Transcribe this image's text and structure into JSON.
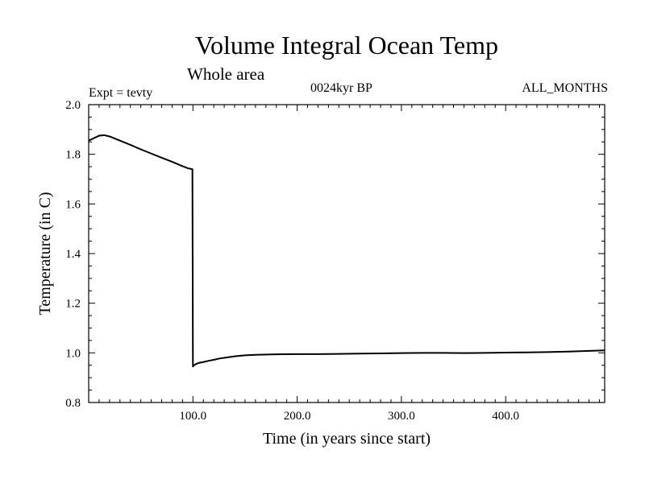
{
  "header": {
    "title": "Volume Integral Ocean Temp",
    "subtitle": "Whole area",
    "experiment": "Expt = tevty",
    "period": "0024kyr BP",
    "months": "ALL_MONTHS"
  },
  "chart_data": {
    "type": "line",
    "title": "Volume Integral Ocean Temp",
    "subtitle": "Whole area",
    "xlabel": "Time (in years since start)",
    "ylabel": "Temperature (in C)",
    "xlim": [
      0,
      495
    ],
    "ylim": [
      0.8,
      2.0
    ],
    "x_ticks": [
      100,
      200,
      300,
      400
    ],
    "x_tick_labels": [
      "100.0",
      "200.0",
      "300.0",
      "400.0"
    ],
    "y_ticks": [
      0.8,
      1.0,
      1.2,
      1.4,
      1.6,
      1.8,
      2.0
    ],
    "y_tick_labels": [
      "0.8",
      "1.0",
      "1.2",
      "1.4",
      "1.6",
      "1.8",
      "2.0"
    ],
    "grid": false,
    "series": [
      {
        "color": "#000000",
        "x": [
          0,
          5,
          10,
          15,
          20,
          30,
          40,
          50,
          60,
          70,
          80,
          90,
          95,
          98,
          99.5,
          100,
          101,
          103,
          106,
          110,
          115,
          120,
          125,
          130,
          140,
          150,
          160,
          180,
          200,
          220,
          240,
          260,
          280,
          300,
          320,
          340,
          360,
          380,
          400,
          420,
          440,
          460,
          480,
          495
        ],
        "y": [
          1.855,
          1.865,
          1.875,
          1.877,
          1.872,
          1.855,
          1.838,
          1.82,
          1.803,
          1.786,
          1.77,
          1.752,
          1.744,
          1.741,
          1.74,
          0.945,
          0.95,
          0.955,
          0.96,
          0.963,
          0.968,
          0.972,
          0.977,
          0.98,
          0.986,
          0.99,
          0.992,
          0.994,
          0.995,
          0.995,
          0.996,
          0.997,
          0.998,
          0.999,
          1.0,
          1.0,
          0.999,
          1.0,
          1.001,
          1.002,
          1.003,
          1.005,
          1.008,
          1.01
        ]
      }
    ]
  }
}
